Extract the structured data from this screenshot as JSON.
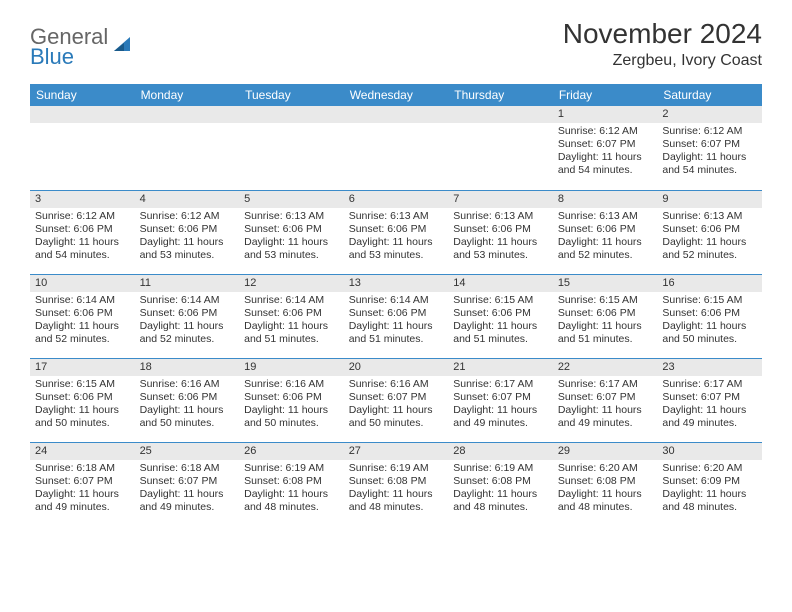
{
  "logo": {
    "main": "General",
    "sub": "Blue"
  },
  "title": "November 2024",
  "location": "Zergbeu, Ivory Coast",
  "colors": {
    "header_bg": "#3b8bc9",
    "header_text": "#ffffff",
    "daynum_bg": "#e9e9e9",
    "border": "#3b8bc9",
    "logo_main": "#666666",
    "logo_sub": "#2a7ab9",
    "text": "#333333",
    "background": "#ffffff"
  },
  "day_headers": [
    "Sunday",
    "Monday",
    "Tuesday",
    "Wednesday",
    "Thursday",
    "Friday",
    "Saturday"
  ],
  "weeks": [
    [
      {
        "n": "",
        "sunrise": "",
        "sunset": "",
        "daylight": ""
      },
      {
        "n": "",
        "sunrise": "",
        "sunset": "",
        "daylight": ""
      },
      {
        "n": "",
        "sunrise": "",
        "sunset": "",
        "daylight": ""
      },
      {
        "n": "",
        "sunrise": "",
        "sunset": "",
        "daylight": ""
      },
      {
        "n": "",
        "sunrise": "",
        "sunset": "",
        "daylight": ""
      },
      {
        "n": "1",
        "sunrise": "Sunrise: 6:12 AM",
        "sunset": "Sunset: 6:07 PM",
        "daylight": "Daylight: 11 hours and 54 minutes."
      },
      {
        "n": "2",
        "sunrise": "Sunrise: 6:12 AM",
        "sunset": "Sunset: 6:07 PM",
        "daylight": "Daylight: 11 hours and 54 minutes."
      }
    ],
    [
      {
        "n": "3",
        "sunrise": "Sunrise: 6:12 AM",
        "sunset": "Sunset: 6:06 PM",
        "daylight": "Daylight: 11 hours and 54 minutes."
      },
      {
        "n": "4",
        "sunrise": "Sunrise: 6:12 AM",
        "sunset": "Sunset: 6:06 PM",
        "daylight": "Daylight: 11 hours and 53 minutes."
      },
      {
        "n": "5",
        "sunrise": "Sunrise: 6:13 AM",
        "sunset": "Sunset: 6:06 PM",
        "daylight": "Daylight: 11 hours and 53 minutes."
      },
      {
        "n": "6",
        "sunrise": "Sunrise: 6:13 AM",
        "sunset": "Sunset: 6:06 PM",
        "daylight": "Daylight: 11 hours and 53 minutes."
      },
      {
        "n": "7",
        "sunrise": "Sunrise: 6:13 AM",
        "sunset": "Sunset: 6:06 PM",
        "daylight": "Daylight: 11 hours and 53 minutes."
      },
      {
        "n": "8",
        "sunrise": "Sunrise: 6:13 AM",
        "sunset": "Sunset: 6:06 PM",
        "daylight": "Daylight: 11 hours and 52 minutes."
      },
      {
        "n": "9",
        "sunrise": "Sunrise: 6:13 AM",
        "sunset": "Sunset: 6:06 PM",
        "daylight": "Daylight: 11 hours and 52 minutes."
      }
    ],
    [
      {
        "n": "10",
        "sunrise": "Sunrise: 6:14 AM",
        "sunset": "Sunset: 6:06 PM",
        "daylight": "Daylight: 11 hours and 52 minutes."
      },
      {
        "n": "11",
        "sunrise": "Sunrise: 6:14 AM",
        "sunset": "Sunset: 6:06 PM",
        "daylight": "Daylight: 11 hours and 52 minutes."
      },
      {
        "n": "12",
        "sunrise": "Sunrise: 6:14 AM",
        "sunset": "Sunset: 6:06 PM",
        "daylight": "Daylight: 11 hours and 51 minutes."
      },
      {
        "n": "13",
        "sunrise": "Sunrise: 6:14 AM",
        "sunset": "Sunset: 6:06 PM",
        "daylight": "Daylight: 11 hours and 51 minutes."
      },
      {
        "n": "14",
        "sunrise": "Sunrise: 6:15 AM",
        "sunset": "Sunset: 6:06 PM",
        "daylight": "Daylight: 11 hours and 51 minutes."
      },
      {
        "n": "15",
        "sunrise": "Sunrise: 6:15 AM",
        "sunset": "Sunset: 6:06 PM",
        "daylight": "Daylight: 11 hours and 51 minutes."
      },
      {
        "n": "16",
        "sunrise": "Sunrise: 6:15 AM",
        "sunset": "Sunset: 6:06 PM",
        "daylight": "Daylight: 11 hours and 50 minutes."
      }
    ],
    [
      {
        "n": "17",
        "sunrise": "Sunrise: 6:15 AM",
        "sunset": "Sunset: 6:06 PM",
        "daylight": "Daylight: 11 hours and 50 minutes."
      },
      {
        "n": "18",
        "sunrise": "Sunrise: 6:16 AM",
        "sunset": "Sunset: 6:06 PM",
        "daylight": "Daylight: 11 hours and 50 minutes."
      },
      {
        "n": "19",
        "sunrise": "Sunrise: 6:16 AM",
        "sunset": "Sunset: 6:06 PM",
        "daylight": "Daylight: 11 hours and 50 minutes."
      },
      {
        "n": "20",
        "sunrise": "Sunrise: 6:16 AM",
        "sunset": "Sunset: 6:07 PM",
        "daylight": "Daylight: 11 hours and 50 minutes."
      },
      {
        "n": "21",
        "sunrise": "Sunrise: 6:17 AM",
        "sunset": "Sunset: 6:07 PM",
        "daylight": "Daylight: 11 hours and 49 minutes."
      },
      {
        "n": "22",
        "sunrise": "Sunrise: 6:17 AM",
        "sunset": "Sunset: 6:07 PM",
        "daylight": "Daylight: 11 hours and 49 minutes."
      },
      {
        "n": "23",
        "sunrise": "Sunrise: 6:17 AM",
        "sunset": "Sunset: 6:07 PM",
        "daylight": "Daylight: 11 hours and 49 minutes."
      }
    ],
    [
      {
        "n": "24",
        "sunrise": "Sunrise: 6:18 AM",
        "sunset": "Sunset: 6:07 PM",
        "daylight": "Daylight: 11 hours and 49 minutes."
      },
      {
        "n": "25",
        "sunrise": "Sunrise: 6:18 AM",
        "sunset": "Sunset: 6:07 PM",
        "daylight": "Daylight: 11 hours and 49 minutes."
      },
      {
        "n": "26",
        "sunrise": "Sunrise: 6:19 AM",
        "sunset": "Sunset: 6:08 PM",
        "daylight": "Daylight: 11 hours and 48 minutes."
      },
      {
        "n": "27",
        "sunrise": "Sunrise: 6:19 AM",
        "sunset": "Sunset: 6:08 PM",
        "daylight": "Daylight: 11 hours and 48 minutes."
      },
      {
        "n": "28",
        "sunrise": "Sunrise: 6:19 AM",
        "sunset": "Sunset: 6:08 PM",
        "daylight": "Daylight: 11 hours and 48 minutes."
      },
      {
        "n": "29",
        "sunrise": "Sunrise: 6:20 AM",
        "sunset": "Sunset: 6:08 PM",
        "daylight": "Daylight: 11 hours and 48 minutes."
      },
      {
        "n": "30",
        "sunrise": "Sunrise: 6:20 AM",
        "sunset": "Sunset: 6:09 PM",
        "daylight": "Daylight: 11 hours and 48 minutes."
      }
    ]
  ]
}
